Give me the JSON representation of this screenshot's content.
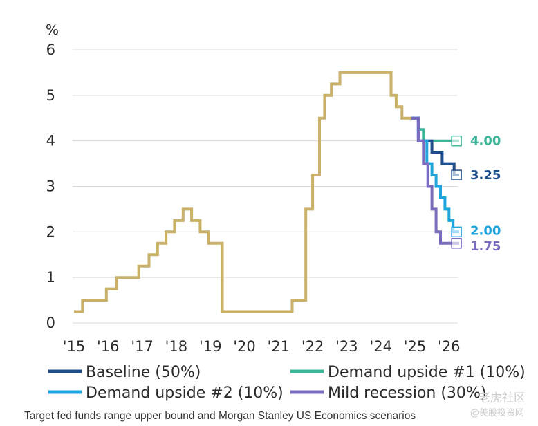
{
  "chart_data": {
    "type": "line",
    "ylabel": "%",
    "ylim": [
      0,
      6
    ],
    "y_ticks": [
      0,
      1,
      2,
      3,
      4,
      5,
      6
    ],
    "x_tick_labels": [
      "'15",
      "'16",
      "'17",
      "'18",
      "'19",
      "'20",
      "'21",
      "'22",
      "'23",
      "'24",
      "'25",
      "'26"
    ],
    "xlim": [
      2015,
      2026.3
    ],
    "grid": true,
    "legend_position": "bottom",
    "history": {
      "color": "#c9b168",
      "x": [
        2015.0,
        2015.25,
        2015.25,
        2015.95,
        2015.95,
        2016.25,
        2016.25,
        2016.9,
        2016.9,
        2017.2,
        2017.2,
        2017.45,
        2017.45,
        2017.7,
        2017.7,
        2017.95,
        2017.95,
        2018.2,
        2018.2,
        2018.45,
        2018.45,
        2018.7,
        2018.7,
        2018.95,
        2018.95,
        2019.35,
        2019.35,
        2019.5,
        2019.5,
        2020.15,
        2020.15,
        2021.4,
        2021.4,
        2021.8,
        2021.8,
        2022.0,
        2022.0,
        2022.2,
        2022.2,
        2022.35,
        2022.35,
        2022.55,
        2022.55,
        2022.8,
        2022.8,
        2023.0,
        2023.0,
        2023.15,
        2023.15,
        2023.4,
        2023.4,
        2023.7,
        2023.7,
        2024.3,
        2024.3,
        2024.45,
        2024.45,
        2024.62,
        2024.62,
        2024.72,
        2024.72,
        2024.85,
        2024.85,
        2025.0
      ],
      "y": [
        0.25,
        0.25,
        0.5,
        0.5,
        0.75,
        0.75,
        1.0,
        1.0,
        1.25,
        1.25,
        1.5,
        1.5,
        1.75,
        1.75,
        2.0,
        2.0,
        2.25,
        2.25,
        2.5,
        2.5,
        2.25,
        2.25,
        2.0,
        2.0,
        1.75,
        1.75,
        0.25,
        0.25,
        0.25,
        0.25,
        0.25,
        0.25,
        0.5,
        0.5,
        2.5,
        2.5,
        3.25,
        3.25,
        4.5,
        4.5,
        5.0,
        5.0,
        5.25,
        5.25,
        5.5,
        5.5,
        5.5,
        5.5,
        5.5,
        5.5,
        5.5,
        5.5,
        5.5,
        5.5,
        5.0,
        5.0,
        4.75,
        4.75,
        4.5,
        4.5,
        4.5,
        4.5,
        4.5,
        4.5
      ]
    },
    "series": [
      {
        "name": "Demand upside #1 (10%)",
        "color": "#3cb79a",
        "x": [
          2024.9,
          2025.1,
          2025.1,
          2025.25,
          2025.25,
          2026.3
        ],
        "y": [
          4.5,
          4.5,
          4.25,
          4.25,
          4.0,
          4.0
        ],
        "end_label": "4.00"
      },
      {
        "name": "Baseline (50%)",
        "color": "#1f4e8c",
        "x": [
          2024.9,
          2025.1,
          2025.1,
          2025.5,
          2025.5,
          2025.62,
          2025.62,
          2025.8,
          2025.8,
          2026.0,
          2026.0,
          2026.15,
          2026.15,
          2026.3
        ],
        "y": [
          4.5,
          4.5,
          4.0,
          4.0,
          3.75,
          3.75,
          3.75,
          3.75,
          3.5,
          3.5,
          3.5,
          3.5,
          3.25,
          3.25
        ],
        "end_label": "3.25"
      },
      {
        "name": "Demand upside #2 (10%)",
        "color": "#1ea5de",
        "x": [
          2024.9,
          2025.1,
          2025.1,
          2025.35,
          2025.35,
          2025.5,
          2025.5,
          2025.62,
          2025.62,
          2025.75,
          2025.75,
          2025.88,
          2025.88,
          2026.0,
          2026.0,
          2026.12,
          2026.12,
          2026.22,
          2026.22,
          2026.3
        ],
        "y": [
          4.5,
          4.5,
          4.0,
          4.0,
          3.5,
          3.5,
          3.25,
          3.25,
          3.0,
          3.0,
          2.75,
          2.75,
          2.5,
          2.5,
          2.25,
          2.25,
          2.0,
          2.0,
          2.0,
          2.0
        ],
        "end_label": "2.00"
      },
      {
        "name": "Mild recession (30%)",
        "color": "#7b6bbd",
        "x": [
          2024.9,
          2025.1,
          2025.1,
          2025.25,
          2025.25,
          2025.38,
          2025.38,
          2025.5,
          2025.5,
          2025.62,
          2025.62,
          2025.75,
          2025.75,
          2025.9,
          2025.9,
          2026.3
        ],
        "y": [
          4.5,
          4.5,
          4.0,
          4.0,
          3.5,
          3.5,
          3.0,
          3.0,
          2.5,
          2.5,
          2.0,
          2.0,
          1.75,
          1.75,
          1.75,
          1.75
        ],
        "end_label": "1.75"
      }
    ],
    "legend": [
      {
        "label": "Baseline (50%)",
        "color": "#1f4e8c"
      },
      {
        "label": "Demand upside #1 (10%)",
        "color": "#3cb79a"
      },
      {
        "label": "Demand upside #2 (10%)",
        "color": "#1ea5de"
      },
      {
        "label": "Mild recession (30%)",
        "color": "#7b6bbd"
      }
    ]
  },
  "caption": "Target fed funds range upper bound and Morgan Stanley US Economics scenarios",
  "watermark": {
    "line1": "老虎社区",
    "line2": "@美股投资网"
  }
}
